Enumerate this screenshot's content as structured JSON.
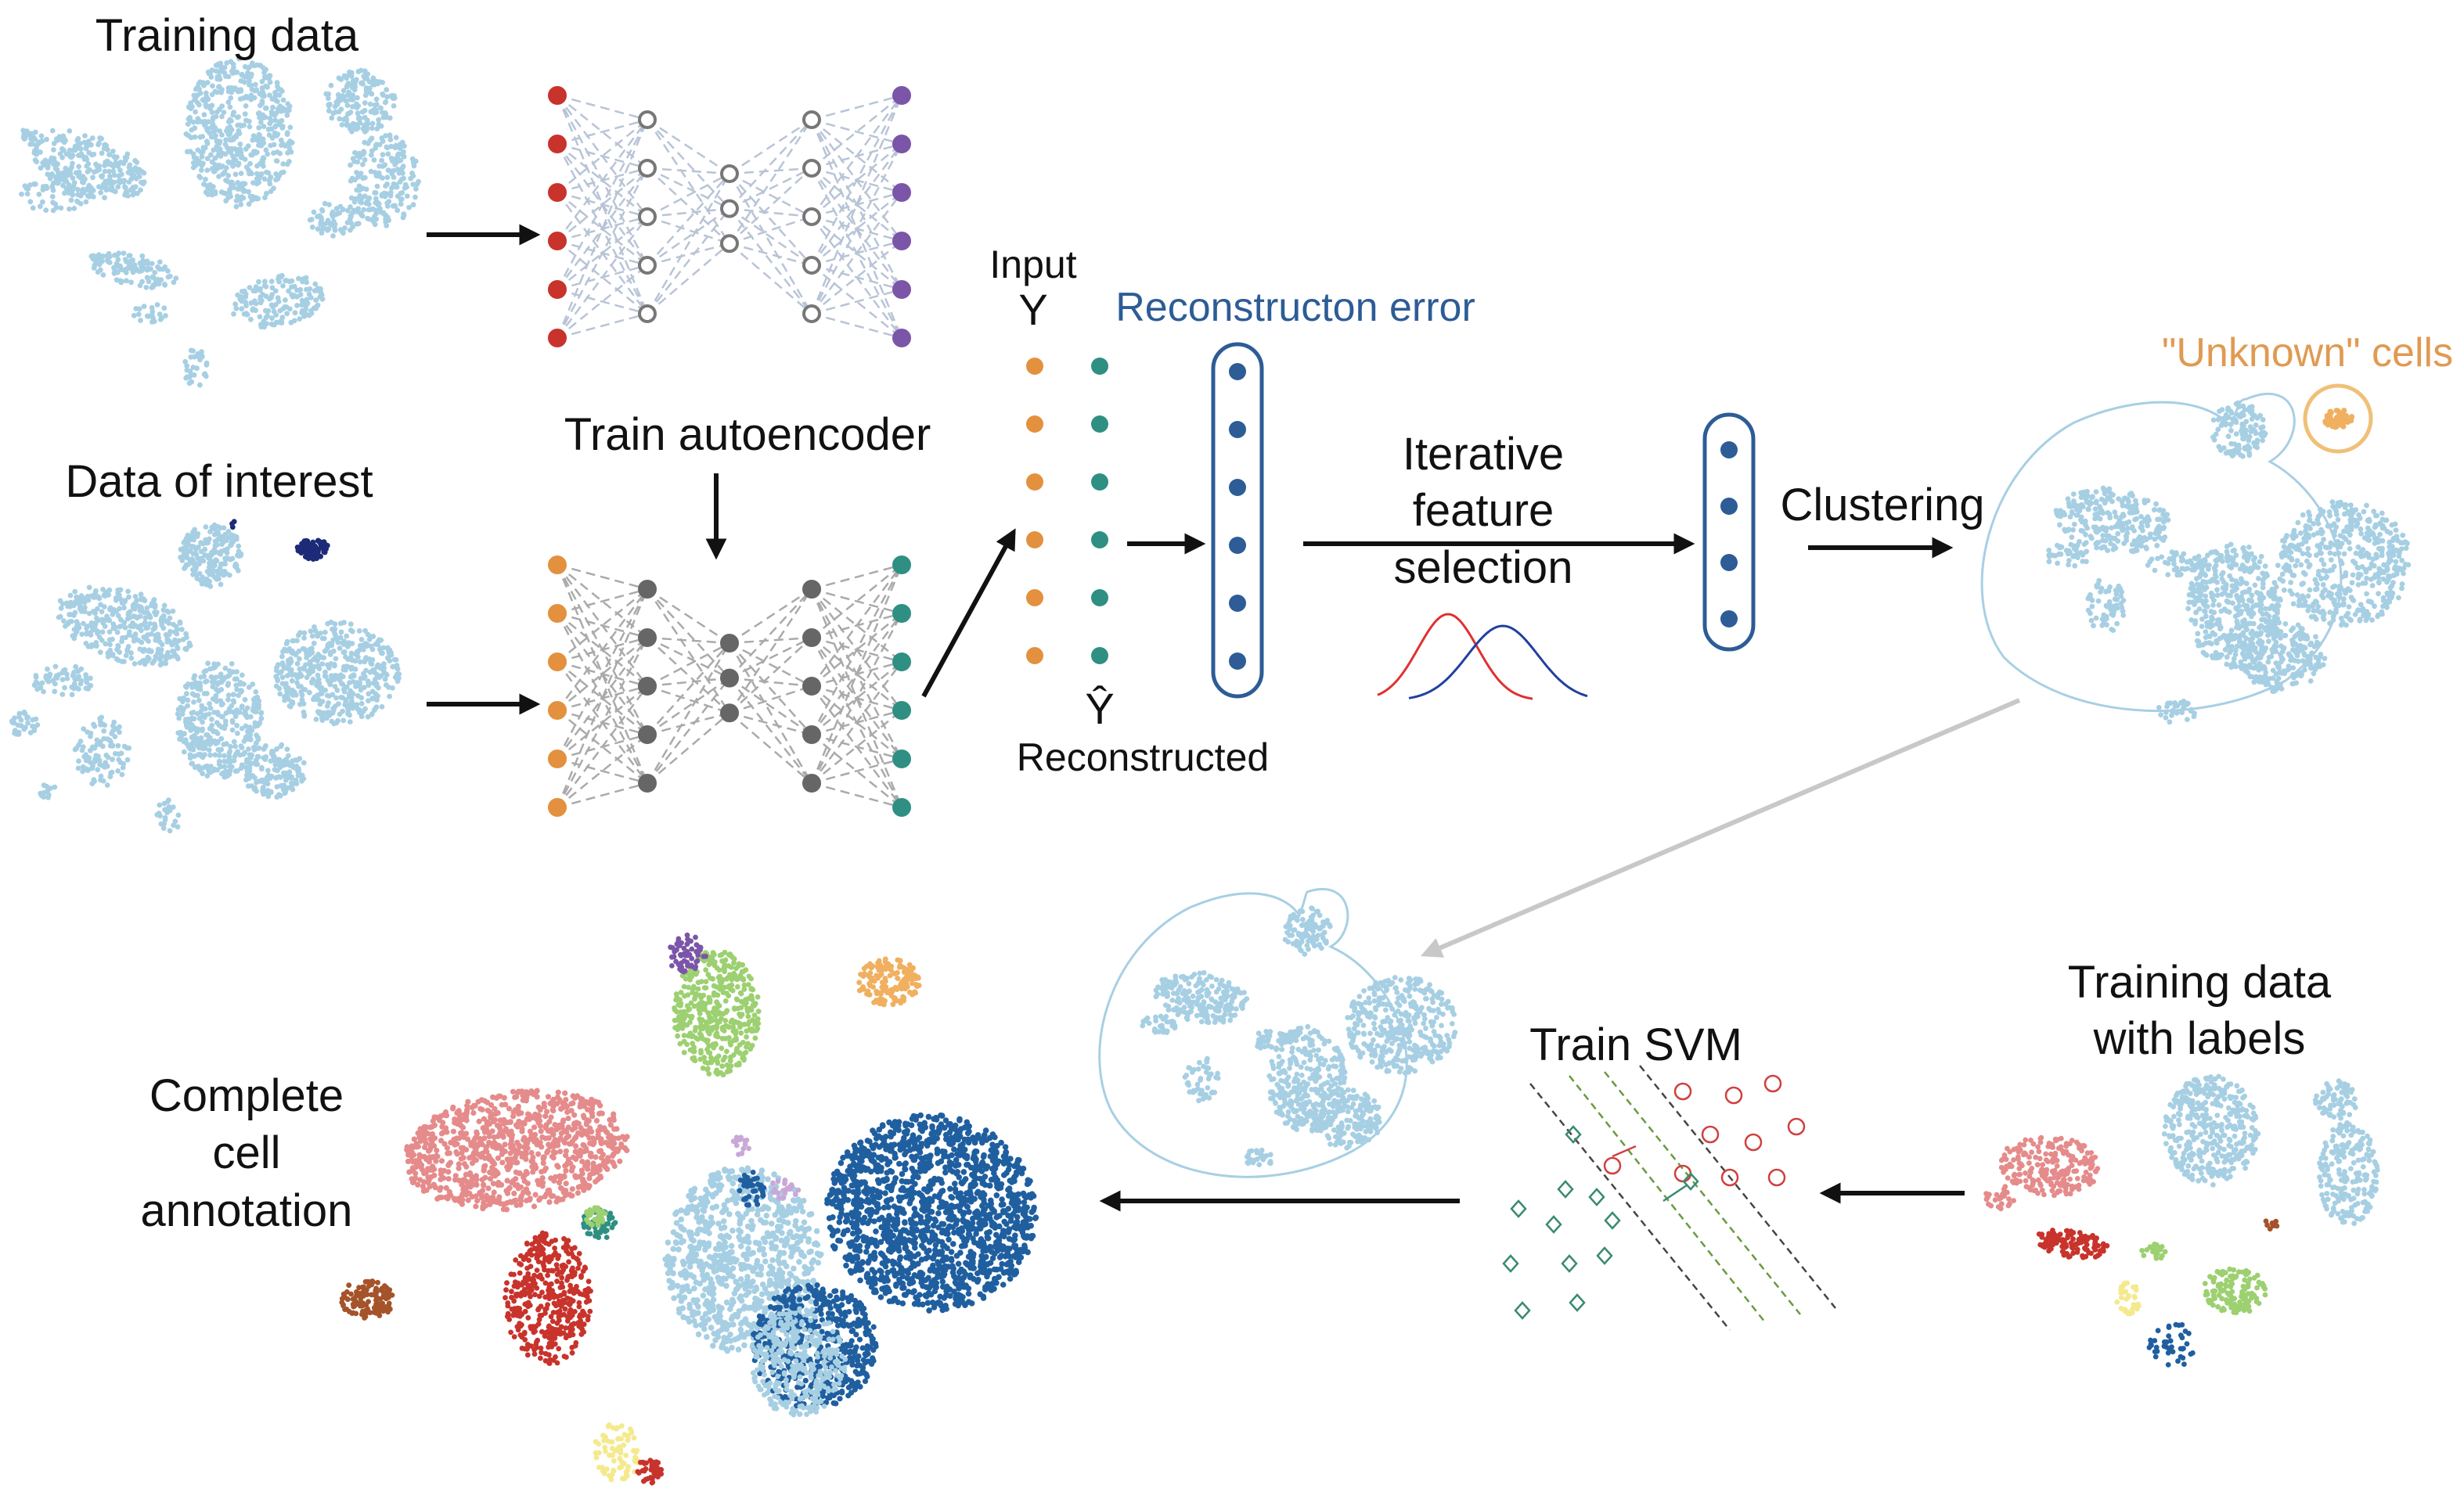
{
  "labels": {
    "training_data": "Training data",
    "data_of_interest": "Data of interest",
    "train_autoencoder": "Train autoencoder",
    "input": "Input",
    "input_symbol": "Y",
    "reconstructed_symbol": "Ŷ",
    "reconstruction_error": "Reconstructon error",
    "iterative_1": "Iterative",
    "iterative_2": "feature",
    "iterative_3": "selection",
    "reconstructed": "Reconstructed",
    "clustering": "Clustering",
    "unknown_cells": "\"Unknown\" cells",
    "train_svm": "Train SVM",
    "training_labels_1": "Training data",
    "training_labels_2": "with labels",
    "complete_1": "Complete",
    "complete_2": "cell",
    "complete_3": "annotation"
  },
  "colors": {
    "cell_blue": "#a7cfe3",
    "dark_blue": "#1f5fa0",
    "navy": "#1c2a78",
    "orange": "#e3913e",
    "teal": "#2f8f83",
    "red": "#c8332b",
    "purple": "#7b55a8",
    "pink": "#e58b8b",
    "green": "#9cd070",
    "brown": "#a5532a",
    "yellow": "#f5e98e",
    "light_orange": "#f0b060",
    "grey_node": "#777777",
    "outline_blue": "#2d5c96",
    "curve_red": "#e03030",
    "curve_blue": "#2040a0"
  },
  "icons": [
    "arrow-icon",
    "neural-network-icon",
    "vector-icon",
    "gaussian-curve-icon",
    "svm-icon"
  ]
}
